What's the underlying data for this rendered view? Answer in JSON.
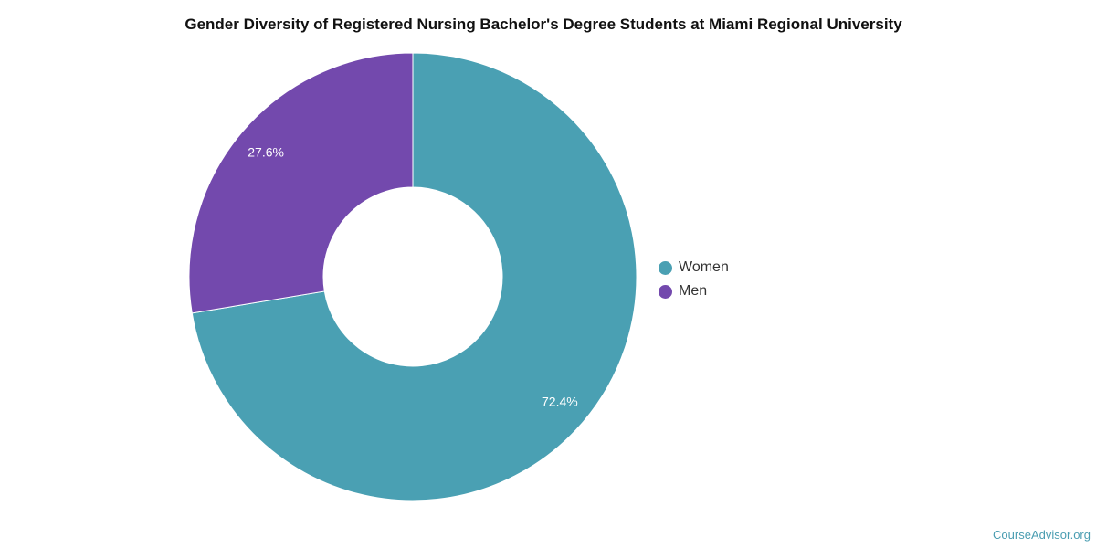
{
  "chart_data": {
    "type": "pie",
    "title": "Gender Diversity of Registered Nursing Bachelor's Degree Students at Miami Regional University",
    "donut": true,
    "categories": [
      "Women",
      "Men"
    ],
    "values": [
      72.4,
      27.6
    ],
    "labels": [
      "72.4%",
      "27.6%"
    ],
    "colors": [
      "#4aa0b3",
      "#7349ad"
    ],
    "legend_position": "right"
  },
  "watermark": "CourseAdvisor.org"
}
